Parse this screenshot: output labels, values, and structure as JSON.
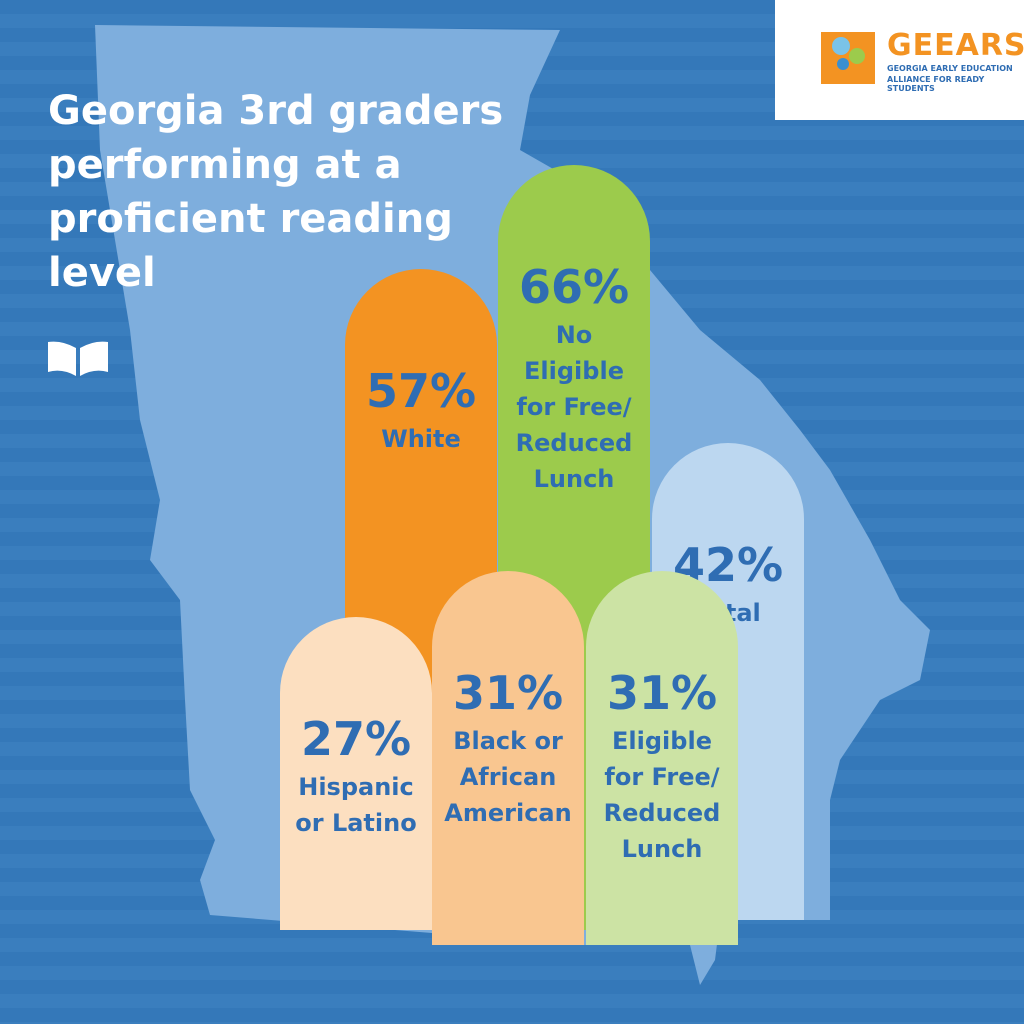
{
  "chart_data": {
    "type": "bar",
    "title": "Georgia 3rd graders performing at a proficient reading level",
    "categories": [
      "White",
      "No Eligible for Free/ Reduced Lunch",
      "Total",
      "Hispanic or Latino",
      "Black or African American",
      "Eligible for Free/ Reduced Lunch"
    ],
    "values": [
      57,
      66,
      42,
      27,
      31,
      31
    ],
    "value_labels": [
      "57%",
      "66%",
      "42%",
      "27%",
      "31%",
      "31%"
    ],
    "colors": [
      "#f39322",
      "#9ccb4c",
      "#bcd7f0",
      "#fcdfc0",
      "#f9c690",
      "#cce3a4"
    ],
    "ylim": [
      0,
      70
    ]
  },
  "logo": {
    "name": "GEEARS",
    "tagline": [
      "GEORGIA EARLY EDUCATION",
      "ALLIANCE FOR READY STUDENTS"
    ]
  }
}
